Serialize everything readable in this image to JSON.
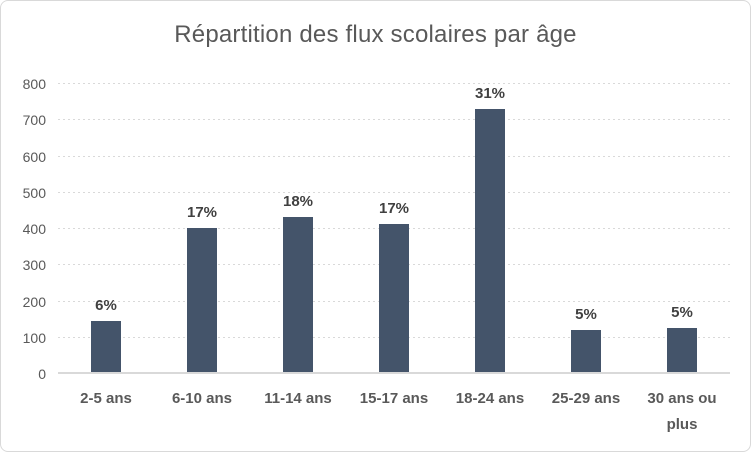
{
  "title": "Répartition des flux scolaires par âge",
  "colors": {
    "bar": "#44546a",
    "gridline": "#d9d9d9",
    "axis_line": "#d9d9d9",
    "title_text": "#595959",
    "axis_text": "#595959",
    "data_label_text": "#404040",
    "frame_border": "#d9d9d9",
    "background": "#ffffff"
  },
  "chart_data": {
    "type": "bar",
    "title": "Répartition des flux scolaires par âge",
    "categories": [
      "2-5 ans",
      "6-10 ans",
      "11-14 ans",
      "15-17 ans",
      "18-24 ans",
      "25-29 ans",
      "30 ans ou plus"
    ],
    "values": [
      145,
      403,
      433,
      414,
      730,
      122,
      127
    ],
    "data_labels": [
      "6%",
      "17%",
      "18%",
      "17%",
      "31%",
      "5%",
      "5%"
    ],
    "xlabel": "",
    "ylabel": "",
    "ylim": [
      0,
      800
    ],
    "yticks": [
      0,
      100,
      200,
      300,
      400,
      500,
      600,
      700,
      800
    ],
    "grid": true,
    "legend": "none",
    "bar_color": "#44546a"
  }
}
